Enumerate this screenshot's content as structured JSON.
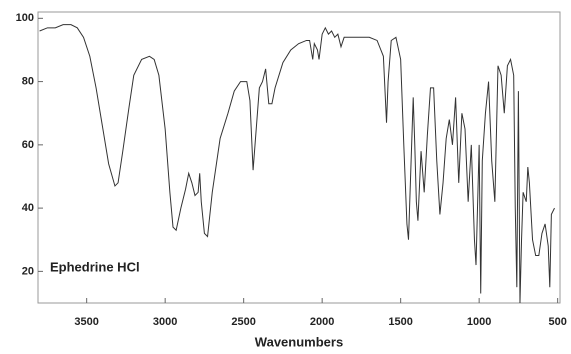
{
  "chart_data": {
    "type": "line",
    "annotation": "Ephedrine HCl",
    "x_label": "Wavenumbers",
    "xlim": [
      3810,
      485
    ],
    "xticks": [
      3500,
      3000,
      2500,
      2000,
      1500,
      1000,
      500
    ],
    "ylim": [
      10,
      102
    ],
    "yticks": [
      20,
      40,
      60,
      80,
      100
    ],
    "series": [
      {
        "color": "#333333",
        "x": [
          3800,
          3750,
          3700,
          3650,
          3600,
          3560,
          3520,
          3480,
          3440,
          3400,
          3360,
          3320,
          3300,
          3270,
          3230,
          3200,
          3150,
          3100,
          3070,
          3040,
          3000,
          2970,
          2950,
          2930,
          2900,
          2870,
          2850,
          2830,
          2810,
          2790,
          2780,
          2770,
          2750,
          2730,
          2700,
          2650,
          2600,
          2560,
          2520,
          2480,
          2460,
          2440,
          2420,
          2400,
          2380,
          2360,
          2340,
          2320,
          2300,
          2250,
          2200,
          2150,
          2100,
          2080,
          2060,
          2050,
          2030,
          2020,
          2000,
          1980,
          1960,
          1940,
          1920,
          1900,
          1880,
          1860,
          1800,
          1700,
          1650,
          1610,
          1590,
          1580,
          1560,
          1530,
          1500,
          1480,
          1460,
          1450,
          1440,
          1420,
          1410,
          1400,
          1390,
          1370,
          1350,
          1330,
          1310,
          1290,
          1270,
          1250,
          1230,
          1210,
          1190,
          1170,
          1150,
          1130,
          1110,
          1090,
          1070,
          1050,
          1030,
          1020,
          1000,
          990,
          980,
          960,
          940,
          920,
          900,
          880,
          860,
          840,
          820,
          800,
          780,
          770,
          760,
          750,
          740,
          730,
          720,
          700,
          690,
          680,
          660,
          640,
          620,
          600,
          580,
          560,
          550,
          540,
          520
        ],
        "values": [
          96,
          97,
          97,
          98,
          98,
          97,
          94,
          88,
          78,
          66,
          54,
          47,
          48,
          58,
          72,
          82,
          87,
          88,
          87,
          82,
          65,
          45,
          34,
          33,
          40,
          46,
          51,
          48,
          44,
          45,
          51,
          42,
          32,
          31,
          45,
          62,
          70,
          77,
          80,
          80,
          74,
          52,
          65,
          78,
          80,
          84,
          73,
          73,
          78,
          86,
          90,
          92,
          93,
          93,
          87,
          92,
          90,
          87,
          95,
          97,
          95,
          96,
          94,
          95,
          91,
          94,
          94,
          94,
          93,
          88,
          67,
          80,
          93,
          94,
          87,
          60,
          35,
          30,
          45,
          75,
          60,
          42,
          36,
          58,
          45,
          63,
          78,
          78,
          55,
          38,
          48,
          62,
          68,
          60,
          75,
          48,
          70,
          65,
          42,
          60,
          30,
          22,
          60,
          13,
          55,
          70,
          80,
          55,
          42,
          85,
          82,
          70,
          85,
          87,
          82,
          40,
          15,
          77,
          10,
          30,
          45,
          42,
          53,
          48,
          30,
          25,
          25,
          32,
          35,
          28,
          15,
          38,
          40
        ]
      }
    ]
  }
}
